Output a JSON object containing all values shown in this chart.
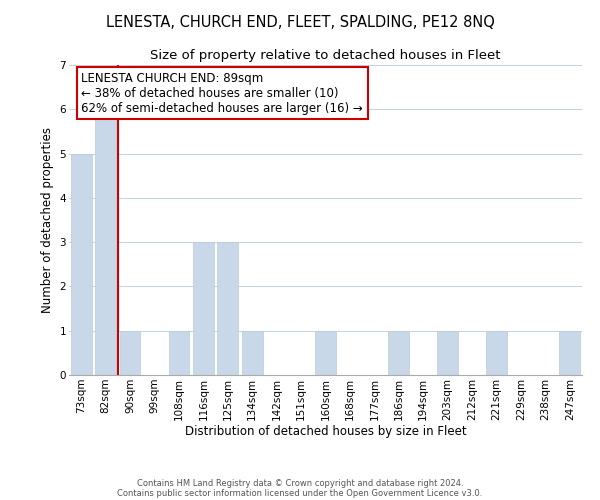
{
  "title": "LENESTA, CHURCH END, FLEET, SPALDING, PE12 8NQ",
  "subtitle": "Size of property relative to detached houses in Fleet",
  "xlabel": "Distribution of detached houses by size in Fleet",
  "ylabel": "Number of detached properties",
  "categories": [
    "73sqm",
    "82sqm",
    "90sqm",
    "99sqm",
    "108sqm",
    "116sqm",
    "125sqm",
    "134sqm",
    "142sqm",
    "151sqm",
    "160sqm",
    "168sqm",
    "177sqm",
    "186sqm",
    "194sqm",
    "203sqm",
    "212sqm",
    "221sqm",
    "229sqm",
    "238sqm",
    "247sqm"
  ],
  "values": [
    5,
    6,
    1,
    0,
    1,
    3,
    3,
    1,
    0,
    0,
    1,
    0,
    0,
    1,
    0,
    1,
    0,
    1,
    0,
    0,
    1
  ],
  "bar_color": "#c8d8e8",
  "bar_edge_color": "#b8ccd8",
  "grid_color": "#b8ccd8",
  "vline_color": "#cc0000",
  "annotation_text": "LENESTA CHURCH END: 89sqm\n← 38% of detached houses are smaller (10)\n62% of semi-detached houses are larger (16) →",
  "annotation_box_color": "#ffffff",
  "annotation_box_edge_color": "#cc0000",
  "ylim": [
    0,
    7
  ],
  "yticks": [
    0,
    1,
    2,
    3,
    4,
    5,
    6,
    7
  ],
  "footer_line1": "Contains HM Land Registry data © Crown copyright and database right 2024.",
  "footer_line2": "Contains public sector information licensed under the Open Government Licence v3.0.",
  "title_fontsize": 10.5,
  "subtitle_fontsize": 9.5,
  "tick_fontsize": 7.5,
  "ylabel_fontsize": 8.5,
  "xlabel_fontsize": 8.5,
  "annotation_fontsize": 8.5,
  "footer_fontsize": 6.0
}
